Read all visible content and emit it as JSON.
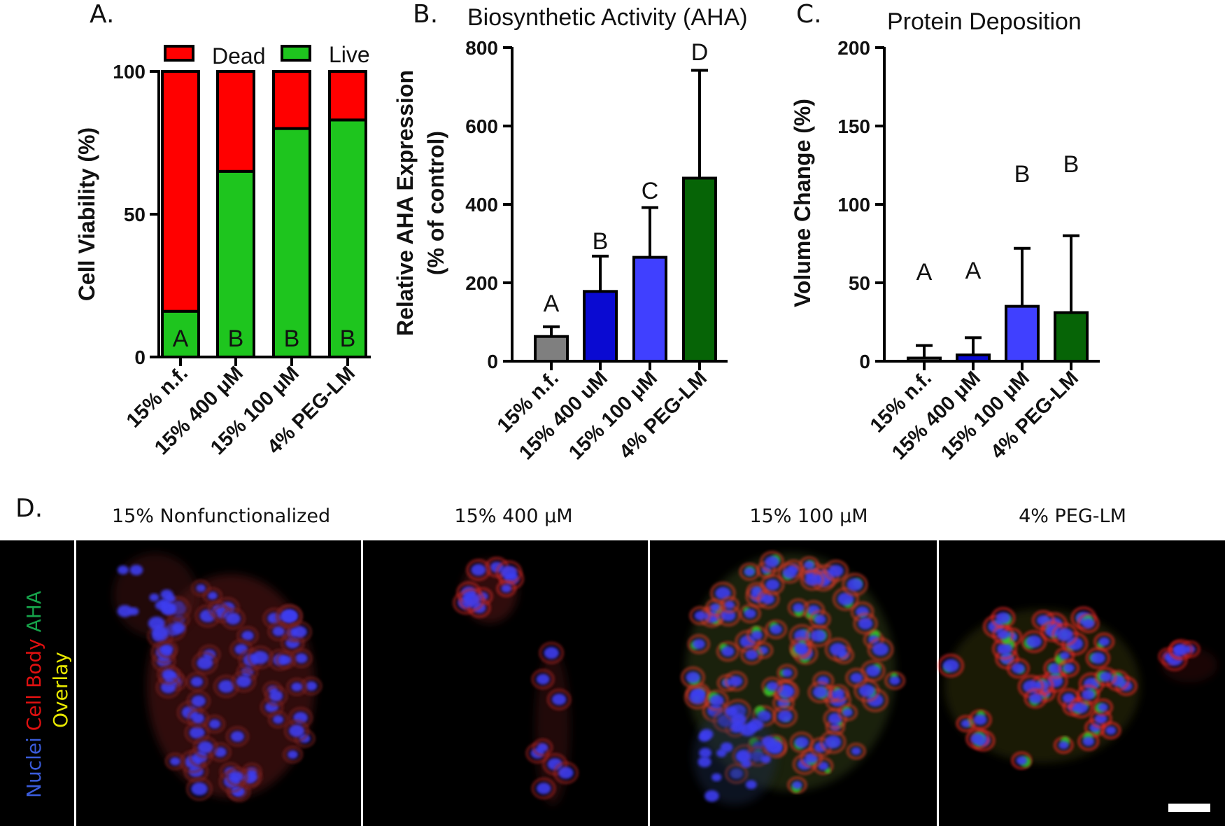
{
  "panels": {
    "a": {
      "letter": "A."
    },
    "b": {
      "letter": "B.",
      "title": "Biosynthetic Activity (AHA)"
    },
    "c": {
      "letter": "C.",
      "title": "Protein Deposition"
    },
    "d": {
      "letter": "D."
    }
  },
  "colors": {
    "dead": "#ff0000",
    "live": "#1ec51e",
    "grey": "#7f7f7f",
    "dark_blue": "#0a0ad2",
    "light_blue": "#4040ff",
    "dark_green": "#066406",
    "nuclei": "#3a5bd9",
    "cell_body": "#e01010",
    "aha": "#16a34a",
    "overlay": "#e6e600"
  },
  "chart_data": [
    {
      "type": "bar",
      "stacked": true,
      "categories": [
        "15% n.f.",
        "15% 400 μM",
        "15% 100 μM",
        "4% PEG-LM"
      ],
      "series": [
        {
          "name": "Live",
          "color": "#1ec51e",
          "values": [
            16,
            65,
            80,
            83
          ]
        },
        {
          "name": "Dead",
          "color": "#ff0000",
          "values": [
            84,
            35,
            20,
            17
          ]
        }
      ],
      "significance_letters": [
        "A",
        "B",
        "B",
        "B"
      ],
      "ylabel": "Cell Viability (%)",
      "ylim": [
        0,
        100
      ],
      "yticks": [
        "0",
        "50",
        "100"
      ],
      "legend": {
        "placement": "top",
        "entries": [
          "Dead",
          "Live"
        ]
      }
    },
    {
      "type": "bar",
      "categories": [
        "15% n.f.",
        "15% 400 uM",
        "15% 100 μM",
        "4% PEG-LM"
      ],
      "values": [
        63,
        178,
        265,
        467
      ],
      "error_plus": [
        25,
        90,
        127,
        275
      ],
      "bar_colors": [
        "#7f7f7f",
        "#0a0ad2",
        "#4040ff",
        "#066406"
      ],
      "significance_letters": [
        "A",
        "B",
        "C",
        "D"
      ],
      "title": "Biosynthetic Activity (AHA)",
      "ylabel": "Relative AHA Expression",
      "ylabel_line2": "(% of control)",
      "ylim": [
        0,
        800
      ],
      "yticks": [
        "0",
        "200",
        "400",
        "600",
        "800"
      ]
    },
    {
      "type": "bar",
      "categories": [
        "15% n.f.",
        "15% 400 μM",
        "15% 100 μM",
        "4% PEG-LM"
      ],
      "values": [
        2,
        4,
        35,
        31
      ],
      "error_plus": [
        8,
        11,
        37,
        49
      ],
      "bar_colors": [
        "#7f7f7f",
        "#0a0ad2",
        "#4040ff",
        "#066406"
      ],
      "significance_letters": [
        "A",
        "A",
        "B",
        "B"
      ],
      "title": "Protein Deposition",
      "ylabel": "Volume Change  (%)",
      "ylim": [
        0,
        200
      ],
      "yticks": [
        "0",
        "50",
        "100",
        "150",
        "200"
      ]
    }
  ],
  "micrographs": {
    "channel_labels": [
      "Nuclei",
      "Cell Body",
      "AHA",
      "Overlay"
    ],
    "titles": [
      "15% Nonfunctionalized",
      "15% 400 μM",
      "15% 100 μM",
      "4% PEG-LM"
    ]
  }
}
